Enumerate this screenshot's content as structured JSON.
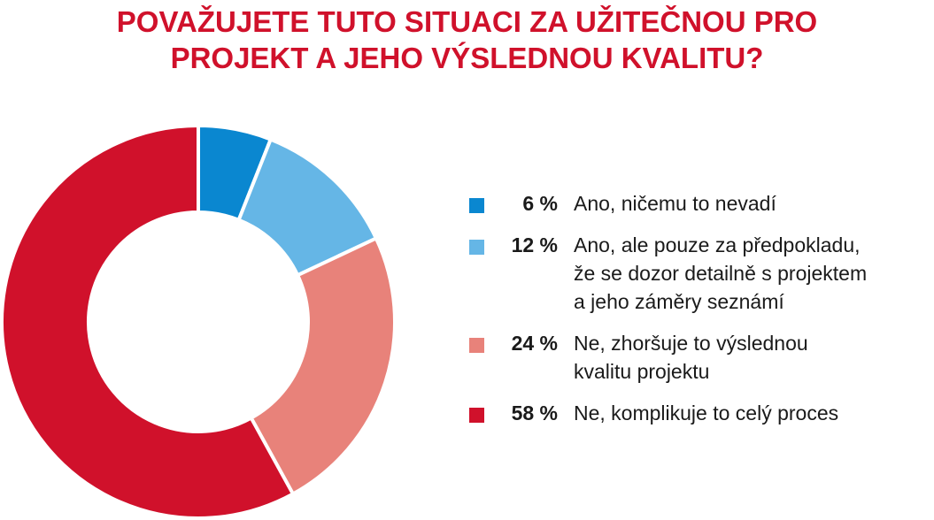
{
  "title": {
    "line1": "POVAŽUJETE TUTO SITUACI ZA UŽITEČNOU PRO",
    "line2": "PROJEKT A JEHO VÝSLEDNOU KVALITU?"
  },
  "chart_data": {
    "type": "pie",
    "title": "POVAŽUJETE TUTO SITUACI ZA UŽITEČNOU PRO PROJEKT A JEHO VÝSLEDNOU KVALITU?",
    "legend_position": "right",
    "categories": [
      "Ano, ničemu to nevadí",
      "Ano, ale pouze za předpokladu, že se dozor detailně s projektem a jeho záměry seznámí",
      "Ne, zhoršuje to výslednou kvalitu projektu",
      "Ne, komplikuje to celý proces"
    ],
    "values": [
      6,
      12,
      24,
      58
    ],
    "colors": [
      "#0a87d0",
      "#65b6e6",
      "#e8827a",
      "#d0112b"
    ],
    "slices": [
      {
        "value": 6,
        "pct_label": "6 %",
        "label": "Ano, ničemu to nevadí",
        "color": "#0a87d0"
      },
      {
        "value": 12,
        "pct_label": "12 %",
        "label": "Ano, ale pouze za předpokladu,\nže se dozor detailně s projektem\na jeho záměry seznámí",
        "color": "#65b6e6"
      },
      {
        "value": 24,
        "pct_label": "24 %",
        "label": "Ne, zhoršuje to výslednou\nkvalitu projektu",
        "color": "#e8827a"
      },
      {
        "value": 58,
        "pct_label": "58 %",
        "label": "Ne, komplikuje to celý proces",
        "color": "#d0112b"
      }
    ]
  }
}
